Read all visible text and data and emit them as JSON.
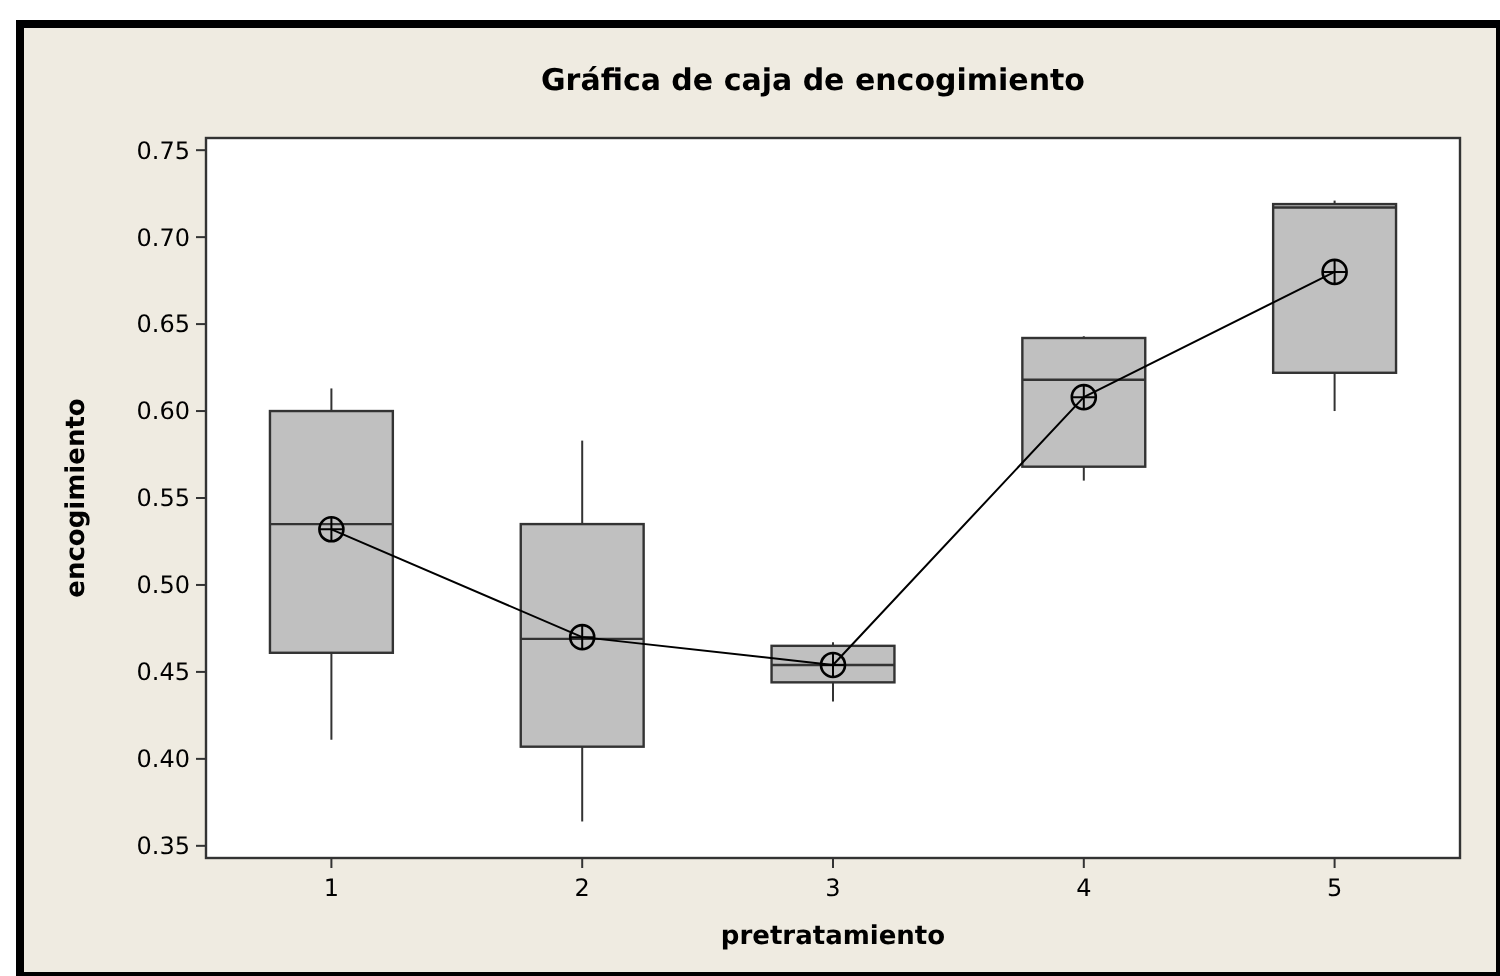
{
  "chart_data": {
    "type": "box",
    "title": "Gráfica de caja de encogimiento",
    "xlabel": "pretratamiento",
    "ylabel": "encogimiento",
    "categories": [
      "1",
      "2",
      "3",
      "4",
      "5"
    ],
    "ylim": [
      0.343,
      0.757
    ],
    "yticks": [
      {
        "value": 0.35,
        "label": "0.35"
      },
      {
        "value": 0.4,
        "label": "0.40"
      },
      {
        "value": 0.45,
        "label": "0.45"
      },
      {
        "value": 0.5,
        "label": "0.50"
      },
      {
        "value": 0.55,
        "label": "0.55"
      },
      {
        "value": 0.6,
        "label": "0.60"
      },
      {
        "value": 0.65,
        "label": "0.65"
      },
      {
        "value": 0.7,
        "label": "0.70"
      },
      {
        "value": 0.75,
        "label": "0.75"
      }
    ],
    "grid": false,
    "series": [
      {
        "color": "#c0c0c0",
        "boxes": [
          {
            "low": 0.411,
            "q1": 0.461,
            "median": 0.535,
            "q3": 0.6,
            "high": 0.613
          },
          {
            "low": 0.364,
            "q1": 0.407,
            "median": 0.469,
            "q3": 0.535,
            "high": 0.583
          },
          {
            "low": 0.433,
            "q1": 0.444,
            "median": 0.454,
            "q3": 0.465,
            "high": 0.467
          },
          {
            "low": 0.56,
            "q1": 0.568,
            "median": 0.618,
            "q3": 0.642,
            "high": 0.643
          },
          {
            "low": 0.6,
            "q1": 0.622,
            "median": 0.717,
            "q3": 0.719,
            "high": 0.721
          }
        ]
      },
      {
        "type": "line",
        "color": "#000000",
        "marker": "circle",
        "line_style": "solid",
        "x": [
          "1",
          "2",
          "3",
          "4",
          "5"
        ],
        "values": [
          0.532,
          0.47,
          0.454,
          0.608,
          0.68
        ]
      }
    ]
  }
}
